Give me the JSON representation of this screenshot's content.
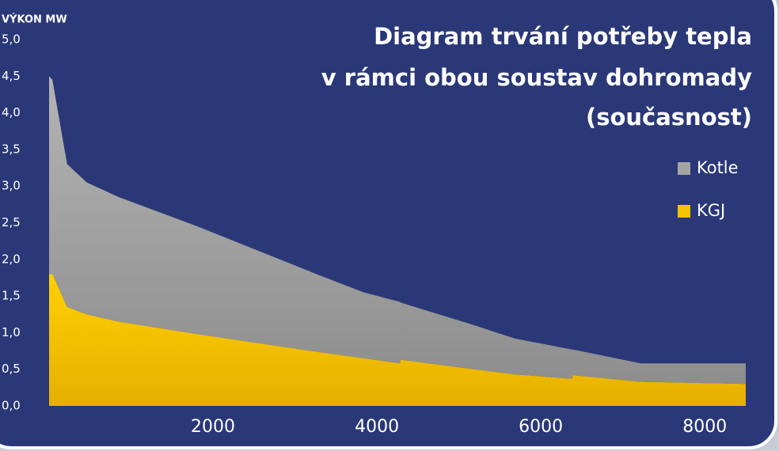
{
  "chart_data": {
    "type": "stacked_area",
    "title": [
      "Diagram trvání potřeby tepla",
      "v rámci obou soustav dohromady",
      "(současnost)"
    ],
    "y_label": "VÝKON MW",
    "x": [
      0,
      40,
      220,
      460,
      850,
      1810,
      2590,
      3260,
      3840,
      4280,
      4290,
      5190,
      5680,
      6380,
      6390,
      7220,
      8500
    ],
    "series": [
      {
        "name": "KGJ",
        "color": "#f5c400",
        "values": [
          1.8,
          1.8,
          1.35,
          1.25,
          1.15,
          0.98,
          0.85,
          0.74,
          0.65,
          0.58,
          0.63,
          0.5,
          0.43,
          0.37,
          0.42,
          0.33,
          0.3
        ]
      },
      {
        "name": "Kotle",
        "color": "#a3a3a3",
        "values": [
          2.7,
          2.65,
          1.95,
          1.8,
          1.7,
          1.47,
          1.25,
          1.06,
          0.9,
          0.84,
          0.78,
          0.6,
          0.49,
          0.4,
          0.35,
          0.25,
          0.28
        ]
      }
    ],
    "xlim": [
      0,
      8500
    ],
    "ylim": [
      0,
      5
    ],
    "xticks": [
      2000,
      4000,
      6000,
      8000
    ],
    "yticks": [
      {
        "value": 0,
        "label": "0,0"
      },
      {
        "value": 0.5,
        "label": "0,5"
      },
      {
        "value": 1,
        "label": "1,0"
      },
      {
        "value": 1.5,
        "label": "1,5"
      },
      {
        "value": 2,
        "label": "2,0"
      },
      {
        "value": 2.5,
        "label": "2,5"
      },
      {
        "value": 3,
        "label": "3,0"
      },
      {
        "value": 3.5,
        "label": "3,5"
      },
      {
        "value": 4,
        "label": "4,0"
      },
      {
        "value": 4.5,
        "label": "4,5"
      },
      {
        "value": 5,
        "label": "5,0"
      }
    ],
    "legend": "right"
  }
}
